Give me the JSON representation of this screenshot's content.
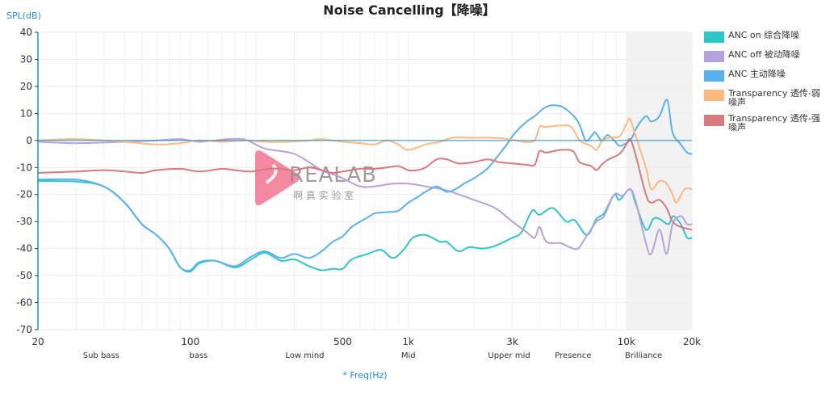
{
  "chart_data": {
    "type": "line",
    "title": "Noise Cancelling【降噪】",
    "ylabel": "SPL(dB)",
    "xlabel": "* Freq(Hz)",
    "xscale": "log",
    "xlim": [
      20,
      20000
    ],
    "ylim": [
      -70,
      40
    ],
    "yticks": [
      40,
      30,
      20,
      10,
      0,
      -10,
      -20,
      -30,
      -40,
      -50,
      -60,
      -70
    ],
    "xticks": [
      {
        "value": 20,
        "label": "20"
      },
      {
        "value": 100,
        "label": "100"
      },
      {
        "value": 500,
        "label": "500"
      },
      {
        "value": 1000,
        "label": "1k"
      },
      {
        "value": 3000,
        "label": "3k"
      },
      {
        "value": 10000,
        "label": "10k"
      },
      {
        "value": 20000,
        "label": "20k"
      }
    ],
    "bands": [
      {
        "label": "Sub bass",
        "center": 39
      },
      {
        "label": "bass",
        "center": 109
      },
      {
        "label": "Low mind",
        "center": 335
      },
      {
        "label": "Mid",
        "center": 1000
      },
      {
        "label": "Upper mid",
        "center": 2900
      },
      {
        "label": "Presence",
        "center": 5700
      },
      {
        "label": "Brilliance",
        "center": 12000
      }
    ],
    "highlight_range": [
      10000,
      20000
    ],
    "grid": true,
    "legend_position": "right",
    "series": [
      {
        "name": "ANC on 综合降噪",
        "color": "#2ec7c9",
        "points": [
          [
            20,
            -15
          ],
          [
            30,
            -15.2
          ],
          [
            40,
            -17
          ],
          [
            50,
            -23
          ],
          [
            60,
            -31
          ],
          [
            70,
            -35
          ],
          [
            80,
            -40
          ],
          [
            90,
            -47
          ],
          [
            100,
            -48.5
          ],
          [
            110,
            -45.5
          ],
          [
            130,
            -44.5
          ],
          [
            160,
            -47
          ],
          [
            190,
            -44
          ],
          [
            220,
            -41.5
          ],
          [
            260,
            -44.5
          ],
          [
            300,
            -44
          ],
          [
            350,
            -46.5
          ],
          [
            400,
            -48
          ],
          [
            450,
            -47.5
          ],
          [
            500,
            -47.5
          ],
          [
            550,
            -44
          ],
          [
            650,
            -42
          ],
          [
            750,
            -40.5
          ],
          [
            850,
            -43.5
          ],
          [
            950,
            -40.5
          ],
          [
            1050,
            -36
          ],
          [
            1200,
            -35
          ],
          [
            1400,
            -37.5
          ],
          [
            1500,
            -37.5
          ],
          [
            1700,
            -41
          ],
          [
            1900,
            -39.5
          ],
          [
            2200,
            -40
          ],
          [
            2500,
            -39
          ],
          [
            3000,
            -36
          ],
          [
            3300,
            -34
          ],
          [
            3700,
            -26
          ],
          [
            4000,
            -27.5
          ],
          [
            4600,
            -25
          ],
          [
            5300,
            -30
          ],
          [
            5800,
            -29.5
          ],
          [
            6600,
            -35
          ],
          [
            7300,
            -29
          ],
          [
            7900,
            -27
          ],
          [
            8800,
            -20
          ],
          [
            9300,
            -22
          ],
          [
            10400,
            -18
          ],
          [
            11000,
            -23
          ],
          [
            12300,
            -33
          ],
          [
            13300,
            -29
          ],
          [
            14200,
            -29
          ],
          [
            15600,
            -31
          ],
          [
            16400,
            -28
          ],
          [
            17800,
            -31
          ],
          [
            19000,
            -36
          ],
          [
            20000,
            -36
          ]
        ]
      },
      {
        "name": "ANC off 被动降噪",
        "color": "#b6a2de",
        "points": [
          [
            20,
            -0.5
          ],
          [
            30,
            -1
          ],
          [
            50,
            -0.5
          ],
          [
            70,
            0
          ],
          [
            90,
            0.5
          ],
          [
            110,
            -0.5
          ],
          [
            150,
            0.5
          ],
          [
            180,
            0.2
          ],
          [
            220,
            -3
          ],
          [
            300,
            -5
          ],
          [
            400,
            -11
          ],
          [
            450,
            -12.5
          ],
          [
            500,
            -14
          ],
          [
            600,
            -17
          ],
          [
            700,
            -17
          ],
          [
            850,
            -16
          ],
          [
            1000,
            -16
          ],
          [
            1200,
            -17
          ],
          [
            1500,
            -18.5
          ],
          [
            2000,
            -22
          ],
          [
            2500,
            -25
          ],
          [
            3000,
            -30
          ],
          [
            3500,
            -34
          ],
          [
            3800,
            -36
          ],
          [
            4000,
            -32
          ],
          [
            4300,
            -37.5
          ],
          [
            5000,
            -38
          ],
          [
            5500,
            -39.5
          ],
          [
            6000,
            -40
          ],
          [
            6500,
            -36
          ],
          [
            7300,
            -30
          ],
          [
            7900,
            -28
          ],
          [
            8800,
            -20
          ],
          [
            9600,
            -20.5
          ],
          [
            10400,
            -18
          ],
          [
            11000,
            -22
          ],
          [
            12300,
            -38
          ],
          [
            13000,
            -42
          ],
          [
            14200,
            -33
          ],
          [
            15300,
            -42
          ],
          [
            16300,
            -31
          ],
          [
            17800,
            -28
          ],
          [
            19000,
            -31
          ],
          [
            20000,
            -31
          ]
        ]
      },
      {
        "name": "ANC 主动降噪",
        "color": "#5ab1ef",
        "points": [
          [
            20,
            -14.5
          ],
          [
            30,
            -14.5
          ],
          [
            40,
            -17
          ],
          [
            50,
            -23
          ],
          [
            60,
            -31
          ],
          [
            70,
            -35
          ],
          [
            80,
            -40
          ],
          [
            90,
            -47
          ],
          [
            100,
            -48
          ],
          [
            110,
            -45
          ],
          [
            130,
            -44.5
          ],
          [
            160,
            -46.5
          ],
          [
            190,
            -43
          ],
          [
            220,
            -41
          ],
          [
            260,
            -43.5
          ],
          [
            300,
            -42
          ],
          [
            350,
            -43.5
          ],
          [
            400,
            -41
          ],
          [
            450,
            -37.5
          ],
          [
            500,
            -35.5
          ],
          [
            550,
            -32
          ],
          [
            650,
            -28.5
          ],
          [
            700,
            -27
          ],
          [
            800,
            -26.5
          ],
          [
            900,
            -26
          ],
          [
            1000,
            -23
          ],
          [
            1100,
            -21
          ],
          [
            1200,
            -19
          ],
          [
            1350,
            -17
          ],
          [
            1500,
            -19
          ],
          [
            1650,
            -18
          ],
          [
            1800,
            -16
          ],
          [
            2000,
            -14
          ],
          [
            2300,
            -10.5
          ],
          [
            2500,
            -7
          ],
          [
            2800,
            -2
          ],
          [
            3100,
            3
          ],
          [
            3500,
            7
          ],
          [
            3800,
            9
          ],
          [
            4200,
            12
          ],
          [
            4600,
            13
          ],
          [
            5200,
            12
          ],
          [
            6000,
            7
          ],
          [
            6500,
            0
          ],
          [
            6900,
            1.5
          ],
          [
            7200,
            3
          ],
          [
            7700,
            0
          ],
          [
            8200,
            2
          ],
          [
            8800,
            0
          ],
          [
            9300,
            -2
          ],
          [
            10000,
            -1
          ],
          [
            10600,
            1
          ],
          [
            11200,
            5
          ],
          [
            12300,
            9
          ],
          [
            13000,
            7
          ],
          [
            14200,
            9
          ],
          [
            15400,
            15
          ],
          [
            16300,
            3
          ],
          [
            17800,
            -1.5
          ],
          [
            19000,
            -4.5
          ],
          [
            20000,
            -5
          ]
        ]
      },
      {
        "name": "Transparency 透传-弱噪声",
        "color": "#ffb980",
        "points": [
          [
            20,
            0
          ],
          [
            30,
            0.5
          ],
          [
            50,
            -0.5
          ],
          [
            70,
            -1.5
          ],
          [
            90,
            -1
          ],
          [
            110,
            0
          ],
          [
            140,
            -0.5
          ],
          [
            180,
            0
          ],
          [
            220,
            -0.5
          ],
          [
            280,
            -0.5
          ],
          [
            350,
            0
          ],
          [
            400,
            0.5
          ],
          [
            500,
            -0.5
          ],
          [
            600,
            -1
          ],
          [
            700,
            -1.5
          ],
          [
            800,
            0
          ],
          [
            900,
            -1.5
          ],
          [
            1000,
            -3.5
          ],
          [
            1200,
            -1.5
          ],
          [
            1400,
            -0.5
          ],
          [
            1600,
            1
          ],
          [
            2000,
            1
          ],
          [
            2400,
            1
          ],
          [
            2900,
            0.5
          ],
          [
            3400,
            -0.5
          ],
          [
            3800,
            0
          ],
          [
            4000,
            5
          ],
          [
            4300,
            5
          ],
          [
            5000,
            5.5
          ],
          [
            5600,
            5
          ],
          [
            6100,
            0
          ],
          [
            6900,
            -2
          ],
          [
            7300,
            -3.5
          ],
          [
            7700,
            -0.5
          ],
          [
            8300,
            1
          ],
          [
            9300,
            1.5
          ],
          [
            10000,
            6
          ],
          [
            10400,
            8
          ],
          [
            11100,
            1
          ],
          [
            12300,
            -10
          ],
          [
            13000,
            -18
          ],
          [
            14200,
            -15
          ],
          [
            15300,
            -16
          ],
          [
            16300,
            -20
          ],
          [
            17000,
            -23
          ],
          [
            18500,
            -18
          ],
          [
            20000,
            -18
          ]
        ]
      },
      {
        "name": "Transparency 透传-强噪声",
        "color": "#d87a80",
        "points": [
          [
            20,
            -12
          ],
          [
            30,
            -11.5
          ],
          [
            40,
            -11
          ],
          [
            50,
            -11.5
          ],
          [
            60,
            -12
          ],
          [
            70,
            -11
          ],
          [
            90,
            -10.5
          ],
          [
            110,
            -11.5
          ],
          [
            140,
            -10.5
          ],
          [
            160,
            -11
          ],
          [
            190,
            -11.5
          ],
          [
            230,
            -10.5
          ],
          [
            260,
            -10.5
          ],
          [
            300,
            -11
          ],
          [
            350,
            -10
          ],
          [
            400,
            -11
          ],
          [
            450,
            -12
          ],
          [
            500,
            -11.5
          ],
          [
            600,
            -10.5
          ],
          [
            700,
            -10.5
          ],
          [
            800,
            -10
          ],
          [
            900,
            -9.5
          ],
          [
            1000,
            -11
          ],
          [
            1100,
            -11
          ],
          [
            1200,
            -10
          ],
          [
            1350,
            -7
          ],
          [
            1500,
            -7
          ],
          [
            1700,
            -8.5
          ],
          [
            2000,
            -8
          ],
          [
            2300,
            -7
          ],
          [
            2600,
            -8
          ],
          [
            3000,
            -8.5
          ],
          [
            3500,
            -9
          ],
          [
            3800,
            -9
          ],
          [
            4000,
            -4
          ],
          [
            4300,
            -4.5
          ],
          [
            5000,
            -3.5
          ],
          [
            5700,
            -4
          ],
          [
            6100,
            -8
          ],
          [
            6900,
            -9.5
          ],
          [
            7300,
            -11
          ],
          [
            7700,
            -9
          ],
          [
            8300,
            -7
          ],
          [
            9300,
            -5
          ],
          [
            10000,
            -1.5
          ],
          [
            10400,
            0.5
          ],
          [
            11000,
            -5
          ],
          [
            12300,
            -20
          ],
          [
            13000,
            -23
          ],
          [
            14200,
            -22
          ],
          [
            15300,
            -25
          ],
          [
            16300,
            -30
          ],
          [
            17800,
            -32
          ],
          [
            20000,
            -33
          ]
        ]
      }
    ]
  },
  "watermark": {
    "brand": "REALAB",
    "subtitle": "啊 真 实 验 室"
  }
}
